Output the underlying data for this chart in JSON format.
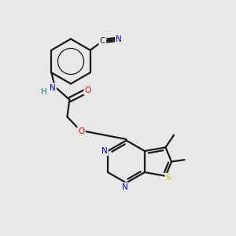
{
  "background_color": "#e8e8e8",
  "bond_color": "#1a1a1a",
  "n_color": "#0000ff",
  "o_color": "#ff0000",
  "s_color": "#cccc00",
  "h_color": "#008080",
  "figsize": [
    3.0,
    3.0
  ],
  "dpi": 100,
  "xlim": [
    0,
    10
  ],
  "ylim": [
    0,
    10
  ]
}
